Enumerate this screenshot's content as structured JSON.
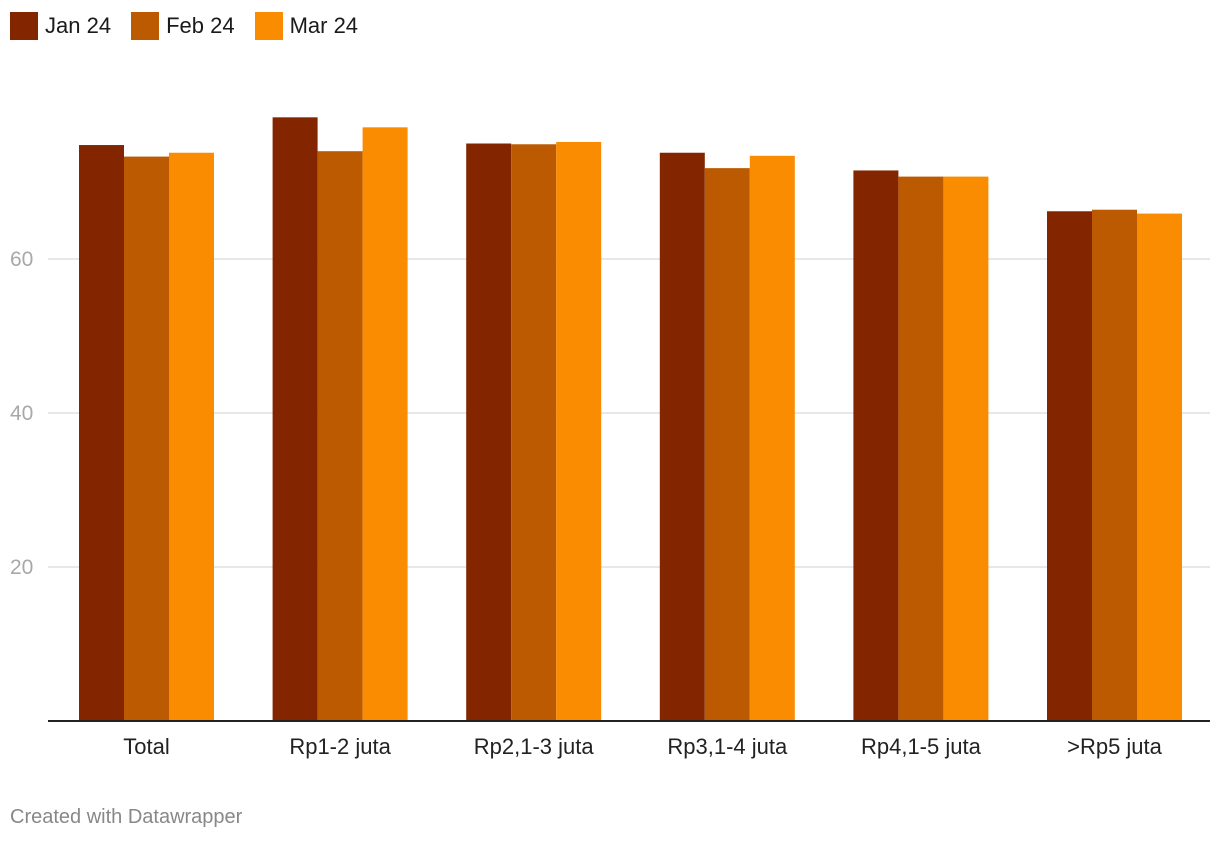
{
  "credit": "Created with Datawrapper",
  "chart_data": {
    "type": "bar",
    "categories": [
      "Total",
      "Rp1-2 juta",
      "Rp2,1-3 juta",
      "Rp3,1-4 juta",
      "Rp4,1-5 juta",
      ">Rp5 juta"
    ],
    "series": [
      {
        "name": "Jan 24",
        "color": "#832600",
        "values": [
          74.8,
          78.4,
          75.0,
          73.8,
          71.5,
          66.2
        ]
      },
      {
        "name": "Feb 24",
        "color": "#bb5a00",
        "values": [
          73.3,
          74.0,
          74.9,
          71.8,
          70.7,
          66.4
        ]
      },
      {
        "name": "Mar 24",
        "color": "#f98c00",
        "values": [
          73.8,
          77.1,
          75.2,
          73.4,
          70.7,
          65.9
        ]
      }
    ],
    "yticks": [
      20,
      40,
      60
    ],
    "ylim": [
      0,
      85
    ],
    "grid": true,
    "legend": "top-left",
    "xlabel": "",
    "ylabel": ""
  }
}
